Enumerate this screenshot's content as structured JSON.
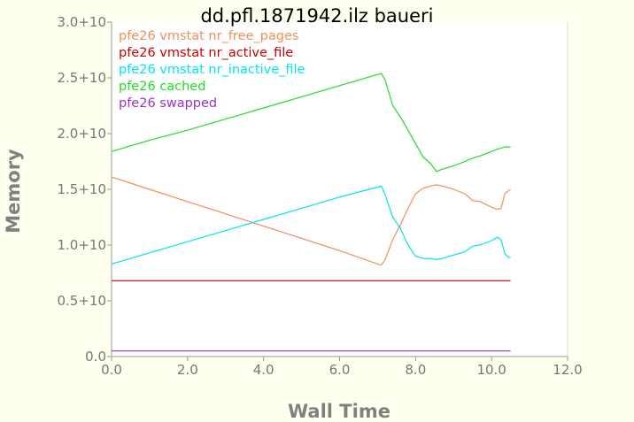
{
  "chart_data": {
    "type": "line",
    "title": "dd.pfl.1871942.ilz baueri",
    "xlabel": "Wall Time",
    "ylabel": "Memory",
    "xlim": [
      0,
      12
    ],
    "ylim": [
      0,
      30000000000
    ],
    "x_ticks": [
      {
        "value": 0,
        "label": "0.0"
      },
      {
        "value": 2,
        "label": "2.0"
      },
      {
        "value": 4,
        "label": "4.0"
      },
      {
        "value": 6,
        "label": "6.0"
      },
      {
        "value": 8,
        "label": "8.0"
      },
      {
        "value": 10,
        "label": "10.0"
      },
      {
        "value": 12,
        "label": "12.0"
      }
    ],
    "y_ticks": [
      {
        "value": 0,
        "label": "0.0"
      },
      {
        "value": 5000000000,
        "label": "0.5+10"
      },
      {
        "value": 10000000000,
        "label": "1.0+10"
      },
      {
        "value": 15000000000,
        "label": "1.5+10"
      },
      {
        "value": 20000000000,
        "label": "2.0+10"
      },
      {
        "value": 25000000000,
        "label": "2.5+10"
      },
      {
        "value": 30000000000,
        "label": "3.0+10"
      }
    ],
    "grid": false,
    "legend_position": "top-left",
    "colors": {
      "background": "#fffff0",
      "plot_background": "#ffffff",
      "axis": "#999999",
      "tick_label": "#777777",
      "axis_label": "#808080",
      "title": "#000000"
    },
    "series": [
      {
        "name": "pfe26 vmstat nr_free_pages",
        "color": "#f0905a",
        "x": [
          0,
          1,
          2,
          3,
          4,
          5,
          6,
          7,
          7.1,
          7.2,
          7.4,
          7.6,
          7.8,
          8.0,
          8.2,
          8.4,
          8.55,
          8.7,
          9.0,
          9.3,
          9.5,
          9.7,
          10.0,
          10.15,
          10.25,
          10.35,
          10.45,
          10.5
        ],
        "y": [
          16100000000,
          15000000000,
          13900000000,
          12800000000,
          11700000000,
          10600000000,
          9500000000,
          8300000000,
          8200000000,
          8700000000,
          10500000000,
          11800000000,
          13300000000,
          14600000000,
          15100000000,
          15300000000,
          15400000000,
          15300000000,
          15000000000,
          14600000000,
          14000000000,
          13900000000,
          13400000000,
          13200000000,
          13300000000,
          14600000000,
          14900000000,
          15000000000
        ]
      },
      {
        "name": "pfe26 vmstat nr_active_file",
        "color": "#cc0000",
        "x": [
          0,
          10.5
        ],
        "y": [
          6800000000,
          6800000000
        ]
      },
      {
        "name": "pfe26 vmstat nr_inactive_file",
        "color": "#00e5ee",
        "x": [
          0,
          1,
          2,
          3,
          4,
          5,
          6,
          7,
          7.1,
          7.2,
          7.4,
          7.6,
          7.8,
          8.0,
          8.2,
          8.4,
          8.55,
          8.7,
          9.0,
          9.3,
          9.5,
          9.7,
          10.0,
          10.15,
          10.25,
          10.35,
          10.45,
          10.5
        ],
        "y": [
          8300000000,
          9300000000,
          10300000000,
          11300000000,
          12300000000,
          13300000000,
          14300000000,
          15200000000,
          15300000000,
          14500000000,
          12500000000,
          11500000000,
          10000000000,
          9000000000,
          8800000000,
          8800000000,
          8700000000,
          8800000000,
          9100000000,
          9400000000,
          9900000000,
          10000000000,
          10400000000,
          10700000000,
          10500000000,
          9200000000,
          8900000000,
          8900000000
        ]
      },
      {
        "name": "pfe26 cached",
        "color": "#22dd22",
        "x": [
          0,
          1,
          2,
          3,
          4,
          5,
          6,
          7,
          7.1,
          7.2,
          7.4,
          7.6,
          7.8,
          8.0,
          8.2,
          8.4,
          8.55,
          8.7,
          9.0,
          9.3,
          9.5,
          9.7,
          10.0,
          10.15,
          10.25,
          10.35,
          10.45,
          10.5
        ],
        "y": [
          18400000000,
          19400000000,
          20300000000,
          21300000000,
          22300000000,
          23300000000,
          24300000000,
          25300000000,
          25400000000,
          24800000000,
          22500000000,
          21500000000,
          20300000000,
          19100000000,
          17900000000,
          17300000000,
          16600000000,
          16800000000,
          17100000000,
          17500000000,
          17800000000,
          18000000000,
          18400000000,
          18600000000,
          18700000000,
          18800000000,
          18800000000,
          18800000000
        ]
      },
      {
        "name": "pfe26 swapped",
        "color": "#9933cc",
        "x": [
          0,
          10.5
        ],
        "y": [
          500000000,
          500000000
        ]
      }
    ]
  }
}
